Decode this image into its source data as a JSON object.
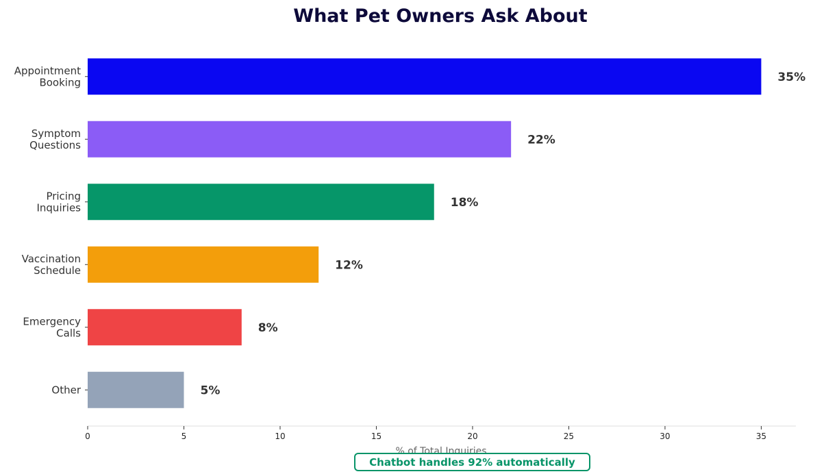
{
  "chart_data": {
    "type": "bar",
    "orientation": "horizontal",
    "title": "What Pet Owners Ask About",
    "xlabel": "% of Total Inquiries",
    "ylabel": "",
    "xlim": [
      0,
      36.8
    ],
    "x_ticks": [
      "0",
      "5",
      "10",
      "15",
      "20",
      "25",
      "30",
      "35"
    ],
    "categories": [
      "Appointment\nBooking",
      "Symptom\nQuestions",
      "Pricing\nInquiries",
      "Vaccination\nSchedule",
      "Emergency\nCalls",
      "Other"
    ],
    "values": [
      35,
      22,
      18,
      12,
      8,
      5
    ],
    "value_labels": [
      "35%",
      "22%",
      "18%",
      "12%",
      "8%",
      "5%"
    ],
    "colors": [
      "#0a07f2",
      "#8b5cf6",
      "#069669",
      "#f39e0b",
      "#ef4445",
      "#94a3b8"
    ],
    "grid": false,
    "legend": "none",
    "annotation": "Chatbot handles 92% automatically",
    "annotation_color": "#079468"
  }
}
